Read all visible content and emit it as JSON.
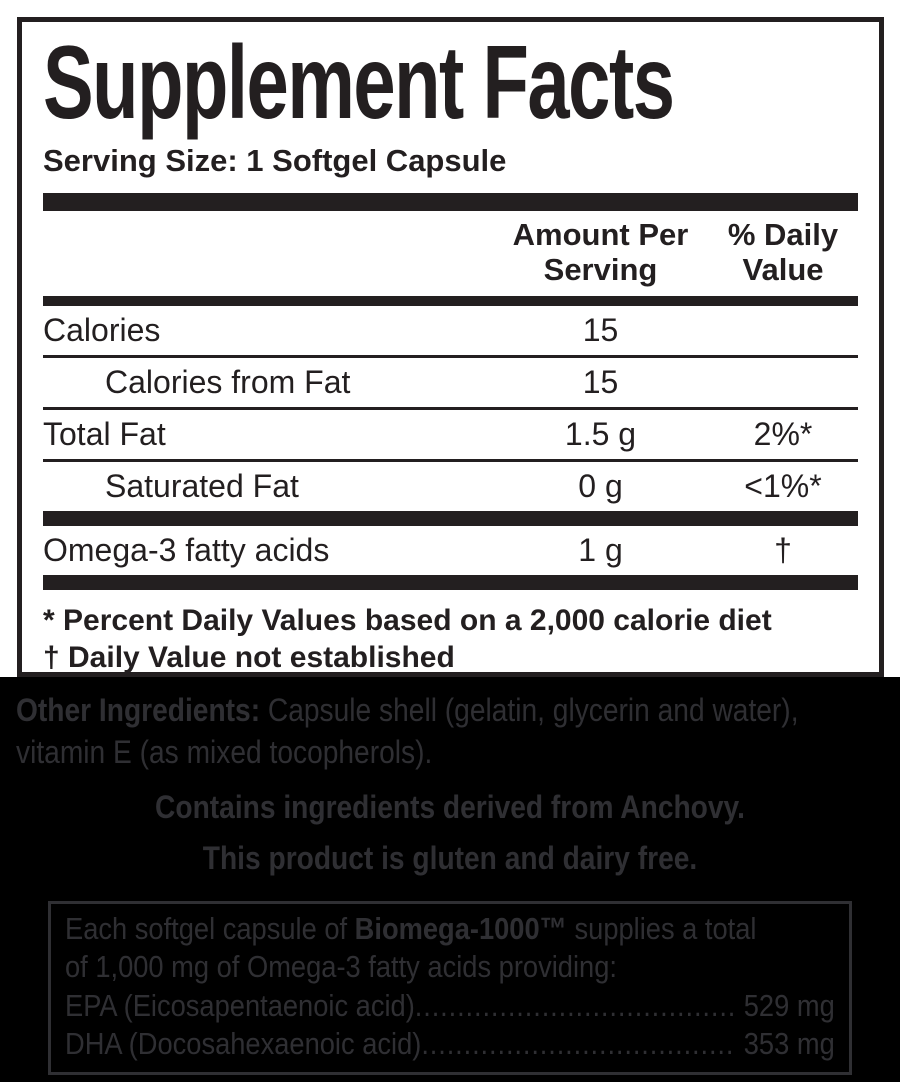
{
  "panel": {
    "title": "Supplement Facts",
    "serving_size": "Serving Size: 1 Softgel Capsule",
    "columns": {
      "amount": "Amount Per Serving",
      "daily_value": "% Daily Value"
    },
    "rows": [
      {
        "name": "Calories",
        "amount": "15",
        "daily_value": ""
      },
      {
        "name": "Calories from Fat",
        "amount": "15",
        "daily_value": ""
      },
      {
        "name": "Total Fat",
        "amount": "1.5 g",
        "daily_value": "2%*"
      },
      {
        "name": "Saturated Fat",
        "amount": "0 g",
        "daily_value": "<1%*"
      },
      {
        "name": "Omega-3 fatty acids",
        "amount": "1 g",
        "daily_value": "†"
      }
    ],
    "footnotes": [
      "* Percent Daily Values based on a 2,000 calorie diet",
      "† Daily Value not established"
    ]
  },
  "ingredients": {
    "label": "Other Ingredients:",
    "text": " Capsule shell (gelatin, glycerin and water), vitamin E (as mixed tocopherols)."
  },
  "statements": [
    "Contains ingredients derived from Anchovy.",
    "This product is gluten and dairy free."
  ],
  "supplies": {
    "line1_pre": "Each softgel capsule of ",
    "brand": "Biomega-1000™",
    "line1_post": " supplies a total",
    "line2": "of 1,000 mg of Omega-3 fatty acids providing:",
    "leader_dots": "..................................................................",
    "items": [
      {
        "name": "EPA (Eicosapentaenoic acid) ",
        "value": "529 mg"
      },
      {
        "name": "DHA (Docosahexaenoic acid)",
        "value": "353 mg"
      }
    ]
  },
  "colors": {
    "panel_text": "#231f20",
    "dark_background": "#000000",
    "dark_text": "#2f2f33"
  }
}
